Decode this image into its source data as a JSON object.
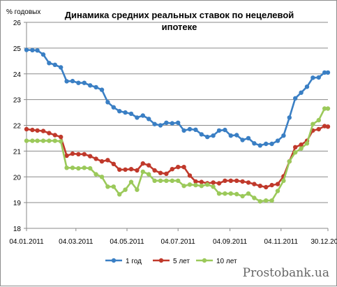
{
  "chart_data": {
    "type": "line",
    "title_lines": [
      "Динамика средних реальных ставок по нецелевой",
      "ипотеке"
    ],
    "ylabel": "% годовых",
    "ylim": [
      18,
      26
    ],
    "yticks": [
      18,
      19,
      20,
      21,
      22,
      23,
      24,
      25,
      26
    ],
    "x_start": "2011-01-04",
    "x_end": "2011-12-30",
    "x_tick_labels": [
      "04.01.2011",
      "04.03.2011",
      "04.05.2011",
      "04.07.2011",
      "04.09.2011",
      "04.11.2011",
      "30.12.2011"
    ],
    "x_tick_dates": [
      "2011-01-04",
      "2011-03-04",
      "2011-05-04",
      "2011-07-04",
      "2011-09-04",
      "2011-11-04",
      "2011-12-30"
    ],
    "grid": "horizontal",
    "legend_position": "bottom",
    "series": [
      {
        "name": "1 год",
        "color": "#3a7fc4",
        "points": [
          [
            "2011-01-04",
            24.93
          ],
          [
            "2011-01-11",
            24.92
          ],
          [
            "2011-01-17",
            24.91
          ],
          [
            "2011-01-24",
            24.75
          ],
          [
            "2011-01-31",
            24.42
          ],
          [
            "2011-02-07",
            24.35
          ],
          [
            "2011-02-14",
            24.25
          ],
          [
            "2011-02-21",
            23.71
          ],
          [
            "2011-02-28",
            23.72
          ],
          [
            "2011-03-07",
            23.65
          ],
          [
            "2011-03-14",
            23.65
          ],
          [
            "2011-03-21",
            23.55
          ],
          [
            "2011-03-28",
            23.48
          ],
          [
            "2011-04-04",
            23.38
          ],
          [
            "2011-04-11",
            22.9
          ],
          [
            "2011-04-18",
            22.7
          ],
          [
            "2011-04-25",
            22.55
          ],
          [
            "2011-05-02",
            22.5
          ],
          [
            "2011-05-09",
            22.45
          ],
          [
            "2011-05-16",
            22.3
          ],
          [
            "2011-05-23",
            22.38
          ],
          [
            "2011-05-30",
            22.25
          ],
          [
            "2011-06-06",
            22.05
          ],
          [
            "2011-06-13",
            22.0
          ],
          [
            "2011-06-20",
            22.1
          ],
          [
            "2011-06-27",
            22.08
          ],
          [
            "2011-07-04",
            22.1
          ],
          [
            "2011-07-11",
            21.8
          ],
          [
            "2011-07-18",
            21.85
          ],
          [
            "2011-07-25",
            21.83
          ],
          [
            "2011-08-01",
            21.65
          ],
          [
            "2011-08-08",
            21.55
          ],
          [
            "2011-08-15",
            21.6
          ],
          [
            "2011-08-22",
            21.8
          ],
          [
            "2011-08-29",
            21.82
          ],
          [
            "2011-09-05",
            21.6
          ],
          [
            "2011-09-12",
            21.62
          ],
          [
            "2011-09-19",
            21.43
          ],
          [
            "2011-09-26",
            21.5
          ],
          [
            "2011-10-03",
            21.3
          ],
          [
            "2011-10-10",
            21.22
          ],
          [
            "2011-10-17",
            21.28
          ],
          [
            "2011-10-24",
            21.28
          ],
          [
            "2011-10-31",
            21.4
          ],
          [
            "2011-11-07",
            21.6
          ],
          [
            "2011-11-14",
            22.3
          ],
          [
            "2011-11-21",
            23.05
          ],
          [
            "2011-11-28",
            23.27
          ],
          [
            "2011-12-05",
            23.5
          ],
          [
            "2011-12-12",
            23.85
          ],
          [
            "2011-12-19",
            23.86
          ],
          [
            "2011-12-26",
            24.05
          ],
          [
            "2011-12-30",
            24.05
          ]
        ]
      },
      {
        "name": "5 лет",
        "color": "#c0392b",
        "points": [
          [
            "2011-01-04",
            21.85
          ],
          [
            "2011-01-11",
            21.82
          ],
          [
            "2011-01-17",
            21.8
          ],
          [
            "2011-01-24",
            21.78
          ],
          [
            "2011-01-31",
            21.7
          ],
          [
            "2011-02-07",
            21.62
          ],
          [
            "2011-02-14",
            21.55
          ],
          [
            "2011-02-21",
            20.82
          ],
          [
            "2011-02-28",
            20.9
          ],
          [
            "2011-03-07",
            20.88
          ],
          [
            "2011-03-14",
            20.88
          ],
          [
            "2011-03-21",
            20.8
          ],
          [
            "2011-03-28",
            20.7
          ],
          [
            "2011-04-04",
            20.6
          ],
          [
            "2011-04-11",
            20.65
          ],
          [
            "2011-04-18",
            20.5
          ],
          [
            "2011-04-25",
            20.28
          ],
          [
            "2011-05-02",
            20.28
          ],
          [
            "2011-05-09",
            20.3
          ],
          [
            "2011-05-16",
            20.25
          ],
          [
            "2011-05-23",
            20.52
          ],
          [
            "2011-05-30",
            20.45
          ],
          [
            "2011-06-06",
            20.25
          ],
          [
            "2011-06-13",
            20.15
          ],
          [
            "2011-06-20",
            20.12
          ],
          [
            "2011-06-27",
            20.3
          ],
          [
            "2011-07-04",
            20.38
          ],
          [
            "2011-07-11",
            20.38
          ],
          [
            "2011-07-18",
            20.05
          ],
          [
            "2011-07-25",
            19.82
          ],
          [
            "2011-08-01",
            19.8
          ],
          [
            "2011-08-08",
            19.75
          ],
          [
            "2011-08-15",
            19.78
          ],
          [
            "2011-08-22",
            19.75
          ],
          [
            "2011-08-29",
            19.85
          ],
          [
            "2011-09-05",
            19.85
          ],
          [
            "2011-09-12",
            19.85
          ],
          [
            "2011-09-19",
            19.82
          ],
          [
            "2011-09-26",
            19.78
          ],
          [
            "2011-10-03",
            19.72
          ],
          [
            "2011-10-10",
            19.65
          ],
          [
            "2011-10-17",
            19.6
          ],
          [
            "2011-10-24",
            19.68
          ],
          [
            "2011-10-31",
            19.72
          ],
          [
            "2011-11-07",
            20.02
          ],
          [
            "2011-11-14",
            20.6
          ],
          [
            "2011-11-21",
            21.15
          ],
          [
            "2011-11-28",
            21.25
          ],
          [
            "2011-12-05",
            21.4
          ],
          [
            "2011-12-12",
            21.8
          ],
          [
            "2011-12-19",
            21.85
          ],
          [
            "2011-12-26",
            21.97
          ],
          [
            "2011-12-30",
            21.95
          ]
        ]
      },
      {
        "name": "10 лет",
        "color": "#9bc95a",
        "points": [
          [
            "2011-01-04",
            21.4
          ],
          [
            "2011-01-11",
            21.4
          ],
          [
            "2011-01-17",
            21.4
          ],
          [
            "2011-01-24",
            21.4
          ],
          [
            "2011-01-31",
            21.4
          ],
          [
            "2011-02-07",
            21.4
          ],
          [
            "2011-02-14",
            21.38
          ],
          [
            "2011-02-21",
            20.35
          ],
          [
            "2011-02-28",
            20.35
          ],
          [
            "2011-03-07",
            20.33
          ],
          [
            "2011-03-14",
            20.35
          ],
          [
            "2011-03-21",
            20.33
          ],
          [
            "2011-03-28",
            20.1
          ],
          [
            "2011-04-04",
            20.0
          ],
          [
            "2011-04-11",
            19.62
          ],
          [
            "2011-04-18",
            19.62
          ],
          [
            "2011-04-25",
            19.32
          ],
          [
            "2011-05-02",
            19.5
          ],
          [
            "2011-05-09",
            19.8
          ],
          [
            "2011-05-16",
            19.5
          ],
          [
            "2011-05-23",
            20.2
          ],
          [
            "2011-05-30",
            20.1
          ],
          [
            "2011-06-06",
            19.85
          ],
          [
            "2011-06-13",
            19.85
          ],
          [
            "2011-06-20",
            19.85
          ],
          [
            "2011-06-27",
            19.85
          ],
          [
            "2011-07-04",
            19.85
          ],
          [
            "2011-07-11",
            19.65
          ],
          [
            "2011-07-18",
            19.7
          ],
          [
            "2011-07-25",
            19.68
          ],
          [
            "2011-08-01",
            19.65
          ],
          [
            "2011-08-08",
            19.7
          ],
          [
            "2011-08-15",
            19.62
          ],
          [
            "2011-08-22",
            19.35
          ],
          [
            "2011-08-29",
            19.35
          ],
          [
            "2011-09-05",
            19.35
          ],
          [
            "2011-09-12",
            19.33
          ],
          [
            "2011-09-19",
            19.25
          ],
          [
            "2011-09-26",
            19.35
          ],
          [
            "2011-10-03",
            19.18
          ],
          [
            "2011-10-10",
            19.05
          ],
          [
            "2011-10-17",
            19.08
          ],
          [
            "2011-10-24",
            19.08
          ],
          [
            "2011-10-31",
            19.45
          ],
          [
            "2011-11-07",
            19.85
          ],
          [
            "2011-11-14",
            20.6
          ],
          [
            "2011-11-21",
            20.95
          ],
          [
            "2011-11-28",
            21.1
          ],
          [
            "2011-12-05",
            21.3
          ],
          [
            "2011-12-12",
            22.05
          ],
          [
            "2011-12-19",
            22.2
          ],
          [
            "2011-12-26",
            22.65
          ],
          [
            "2011-12-30",
            22.65
          ]
        ]
      }
    ]
  },
  "watermark": "Prostobank.ua"
}
